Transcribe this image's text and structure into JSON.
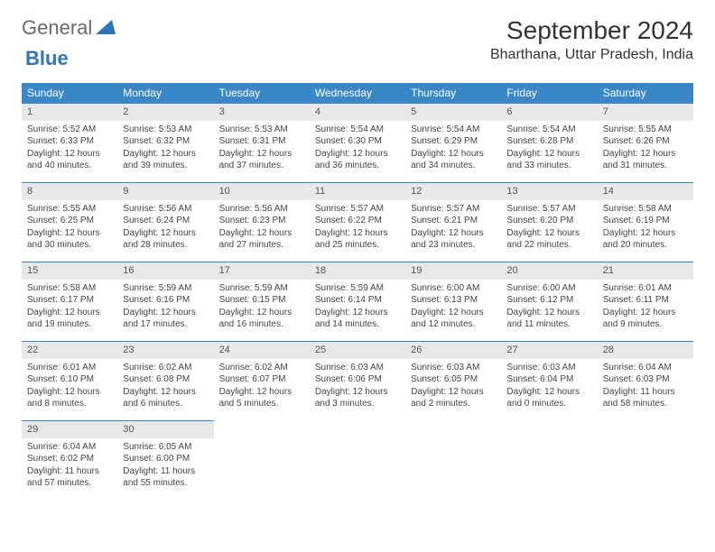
{
  "brand": {
    "part1": "General",
    "part2": "Blue"
  },
  "title": "September 2024",
  "location": "Bharthana, Uttar Pradesh, India",
  "colors": {
    "header_bg": "#3a87c8",
    "header_text": "#ffffff",
    "daynum_bg": "#e8e8e8",
    "border": "#3a87c8",
    "body_text": "#444444"
  },
  "weekdays": [
    "Sunday",
    "Monday",
    "Tuesday",
    "Wednesday",
    "Thursday",
    "Friday",
    "Saturday"
  ],
  "weeks": [
    [
      {
        "n": "1",
        "sr": "Sunrise: 5:52 AM",
        "ss": "Sunset: 6:33 PM",
        "d1": "Daylight: 12 hours",
        "d2": "and 40 minutes."
      },
      {
        "n": "2",
        "sr": "Sunrise: 5:53 AM",
        "ss": "Sunset: 6:32 PM",
        "d1": "Daylight: 12 hours",
        "d2": "and 39 minutes."
      },
      {
        "n": "3",
        "sr": "Sunrise: 5:53 AM",
        "ss": "Sunset: 6:31 PM",
        "d1": "Daylight: 12 hours",
        "d2": "and 37 minutes."
      },
      {
        "n": "4",
        "sr": "Sunrise: 5:54 AM",
        "ss": "Sunset: 6:30 PM",
        "d1": "Daylight: 12 hours",
        "d2": "and 36 minutes."
      },
      {
        "n": "5",
        "sr": "Sunrise: 5:54 AM",
        "ss": "Sunset: 6:29 PM",
        "d1": "Daylight: 12 hours",
        "d2": "and 34 minutes."
      },
      {
        "n": "6",
        "sr": "Sunrise: 5:54 AM",
        "ss": "Sunset: 6:28 PM",
        "d1": "Daylight: 12 hours",
        "d2": "and 33 minutes."
      },
      {
        "n": "7",
        "sr": "Sunrise: 5:55 AM",
        "ss": "Sunset: 6:26 PM",
        "d1": "Daylight: 12 hours",
        "d2": "and 31 minutes."
      }
    ],
    [
      {
        "n": "8",
        "sr": "Sunrise: 5:55 AM",
        "ss": "Sunset: 6:25 PM",
        "d1": "Daylight: 12 hours",
        "d2": "and 30 minutes."
      },
      {
        "n": "9",
        "sr": "Sunrise: 5:56 AM",
        "ss": "Sunset: 6:24 PM",
        "d1": "Daylight: 12 hours",
        "d2": "and 28 minutes."
      },
      {
        "n": "10",
        "sr": "Sunrise: 5:56 AM",
        "ss": "Sunset: 6:23 PM",
        "d1": "Daylight: 12 hours",
        "d2": "and 27 minutes."
      },
      {
        "n": "11",
        "sr": "Sunrise: 5:57 AM",
        "ss": "Sunset: 6:22 PM",
        "d1": "Daylight: 12 hours",
        "d2": "and 25 minutes."
      },
      {
        "n": "12",
        "sr": "Sunrise: 5:57 AM",
        "ss": "Sunset: 6:21 PM",
        "d1": "Daylight: 12 hours",
        "d2": "and 23 minutes."
      },
      {
        "n": "13",
        "sr": "Sunrise: 5:57 AM",
        "ss": "Sunset: 6:20 PM",
        "d1": "Daylight: 12 hours",
        "d2": "and 22 minutes."
      },
      {
        "n": "14",
        "sr": "Sunrise: 5:58 AM",
        "ss": "Sunset: 6:19 PM",
        "d1": "Daylight: 12 hours",
        "d2": "and 20 minutes."
      }
    ],
    [
      {
        "n": "15",
        "sr": "Sunrise: 5:58 AM",
        "ss": "Sunset: 6:17 PM",
        "d1": "Daylight: 12 hours",
        "d2": "and 19 minutes."
      },
      {
        "n": "16",
        "sr": "Sunrise: 5:59 AM",
        "ss": "Sunset: 6:16 PM",
        "d1": "Daylight: 12 hours",
        "d2": "and 17 minutes."
      },
      {
        "n": "17",
        "sr": "Sunrise: 5:59 AM",
        "ss": "Sunset: 6:15 PM",
        "d1": "Daylight: 12 hours",
        "d2": "and 16 minutes."
      },
      {
        "n": "18",
        "sr": "Sunrise: 5:59 AM",
        "ss": "Sunset: 6:14 PM",
        "d1": "Daylight: 12 hours",
        "d2": "and 14 minutes."
      },
      {
        "n": "19",
        "sr": "Sunrise: 6:00 AM",
        "ss": "Sunset: 6:13 PM",
        "d1": "Daylight: 12 hours",
        "d2": "and 12 minutes."
      },
      {
        "n": "20",
        "sr": "Sunrise: 6:00 AM",
        "ss": "Sunset: 6:12 PM",
        "d1": "Daylight: 12 hours",
        "d2": "and 11 minutes."
      },
      {
        "n": "21",
        "sr": "Sunrise: 6:01 AM",
        "ss": "Sunset: 6:11 PM",
        "d1": "Daylight: 12 hours",
        "d2": "and 9 minutes."
      }
    ],
    [
      {
        "n": "22",
        "sr": "Sunrise: 6:01 AM",
        "ss": "Sunset: 6:10 PM",
        "d1": "Daylight: 12 hours",
        "d2": "and 8 minutes."
      },
      {
        "n": "23",
        "sr": "Sunrise: 6:02 AM",
        "ss": "Sunset: 6:08 PM",
        "d1": "Daylight: 12 hours",
        "d2": "and 6 minutes."
      },
      {
        "n": "24",
        "sr": "Sunrise: 6:02 AM",
        "ss": "Sunset: 6:07 PM",
        "d1": "Daylight: 12 hours",
        "d2": "and 5 minutes."
      },
      {
        "n": "25",
        "sr": "Sunrise: 6:03 AM",
        "ss": "Sunset: 6:06 PM",
        "d1": "Daylight: 12 hours",
        "d2": "and 3 minutes."
      },
      {
        "n": "26",
        "sr": "Sunrise: 6:03 AM",
        "ss": "Sunset: 6:05 PM",
        "d1": "Daylight: 12 hours",
        "d2": "and 2 minutes."
      },
      {
        "n": "27",
        "sr": "Sunrise: 6:03 AM",
        "ss": "Sunset: 6:04 PM",
        "d1": "Daylight: 12 hours",
        "d2": "and 0 minutes."
      },
      {
        "n": "28",
        "sr": "Sunrise: 6:04 AM",
        "ss": "Sunset: 6:03 PM",
        "d1": "Daylight: 11 hours",
        "d2": "and 58 minutes."
      }
    ],
    [
      {
        "n": "29",
        "sr": "Sunrise: 6:04 AM",
        "ss": "Sunset: 6:02 PM",
        "d1": "Daylight: 11 hours",
        "d2": "and 57 minutes."
      },
      {
        "n": "30",
        "sr": "Sunrise: 6:05 AM",
        "ss": "Sunset: 6:00 PM",
        "d1": "Daylight: 11 hours",
        "d2": "and 55 minutes."
      },
      null,
      null,
      null,
      null,
      null
    ]
  ]
}
